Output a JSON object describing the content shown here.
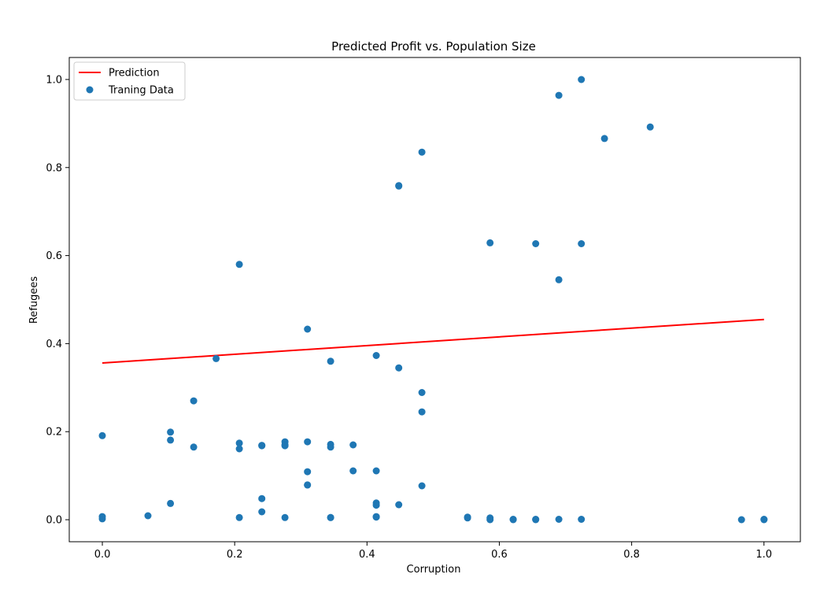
{
  "chart_data": {
    "type": "scatter",
    "title": "Predicted Profit vs. Population Size",
    "xlabel": "Corruption",
    "ylabel": "Refugees",
    "xlim": [
      -0.05,
      1.055
    ],
    "ylim": [
      -0.05,
      1.05
    ],
    "xticks": [
      0.0,
      0.2,
      0.4,
      0.6,
      0.8,
      1.0
    ],
    "xtick_labels": [
      "0.0",
      "0.2",
      "0.4",
      "0.6",
      "0.8",
      "1.0"
    ],
    "yticks": [
      0.0,
      0.2,
      0.4,
      0.6,
      0.8,
      1.0
    ],
    "ytick_labels": [
      "0.0",
      "0.2",
      "0.4",
      "0.6",
      "0.8",
      "1.0"
    ],
    "grid": false,
    "legend_position": "top-left",
    "series": [
      {
        "name": "Prediction",
        "type": "line",
        "color": "#ff0000",
        "x": [
          0.0,
          1.0
        ],
        "y": [
          0.356,
          0.455
        ]
      },
      {
        "name": "Traning Data",
        "type": "scatter",
        "color": "#1f77b4",
        "x": [
          0.0,
          0.0,
          0.0,
          0.069,
          0.103,
          0.103,
          0.103,
          0.138,
          0.138,
          0.172,
          0.207,
          0.207,
          0.207,
          0.207,
          0.241,
          0.241,
          0.241,
          0.241,
          0.276,
          0.276,
          0.276,
          0.276,
          0.31,
          0.31,
          0.31,
          0.31,
          0.31,
          0.345,
          0.345,
          0.345,
          0.345,
          0.345,
          0.379,
          0.379,
          0.414,
          0.414,
          0.414,
          0.414,
          0.414,
          0.414,
          0.448,
          0.448,
          0.448,
          0.448,
          0.483,
          0.483,
          0.483,
          0.483,
          0.552,
          0.552,
          0.586,
          0.586,
          0.586,
          0.621,
          0.621,
          0.655,
          0.655,
          0.655,
          0.69,
          0.69,
          0.69,
          0.724,
          0.724,
          0.724,
          0.759,
          0.828,
          0.966,
          1.0,
          1.0
        ],
        "y": [
          0.191,
          0.007,
          0.002,
          0.009,
          0.199,
          0.181,
          0.037,
          0.27,
          0.165,
          0.366,
          0.58,
          0.174,
          0.161,
          0.005,
          0.168,
          0.169,
          0.048,
          0.018,
          0.177,
          0.17,
          0.168,
          0.005,
          0.433,
          0.177,
          0.109,
          0.079,
          0.079,
          0.36,
          0.171,
          0.165,
          0.005,
          0.005,
          0.17,
          0.111,
          0.373,
          0.111,
          0.038,
          0.033,
          0.006,
          0.007,
          0.759,
          0.758,
          0.345,
          0.034,
          0.835,
          0.289,
          0.245,
          0.077,
          0.006,
          0.004,
          0.629,
          0.004,
          0.0,
          0.001,
          0.0,
          0.627,
          0.001,
          0.0,
          0.964,
          0.545,
          0.001,
          1.0,
          0.627,
          0.001,
          0.866,
          0.892,
          0.0,
          0.001,
          0.0
        ]
      }
    ]
  }
}
